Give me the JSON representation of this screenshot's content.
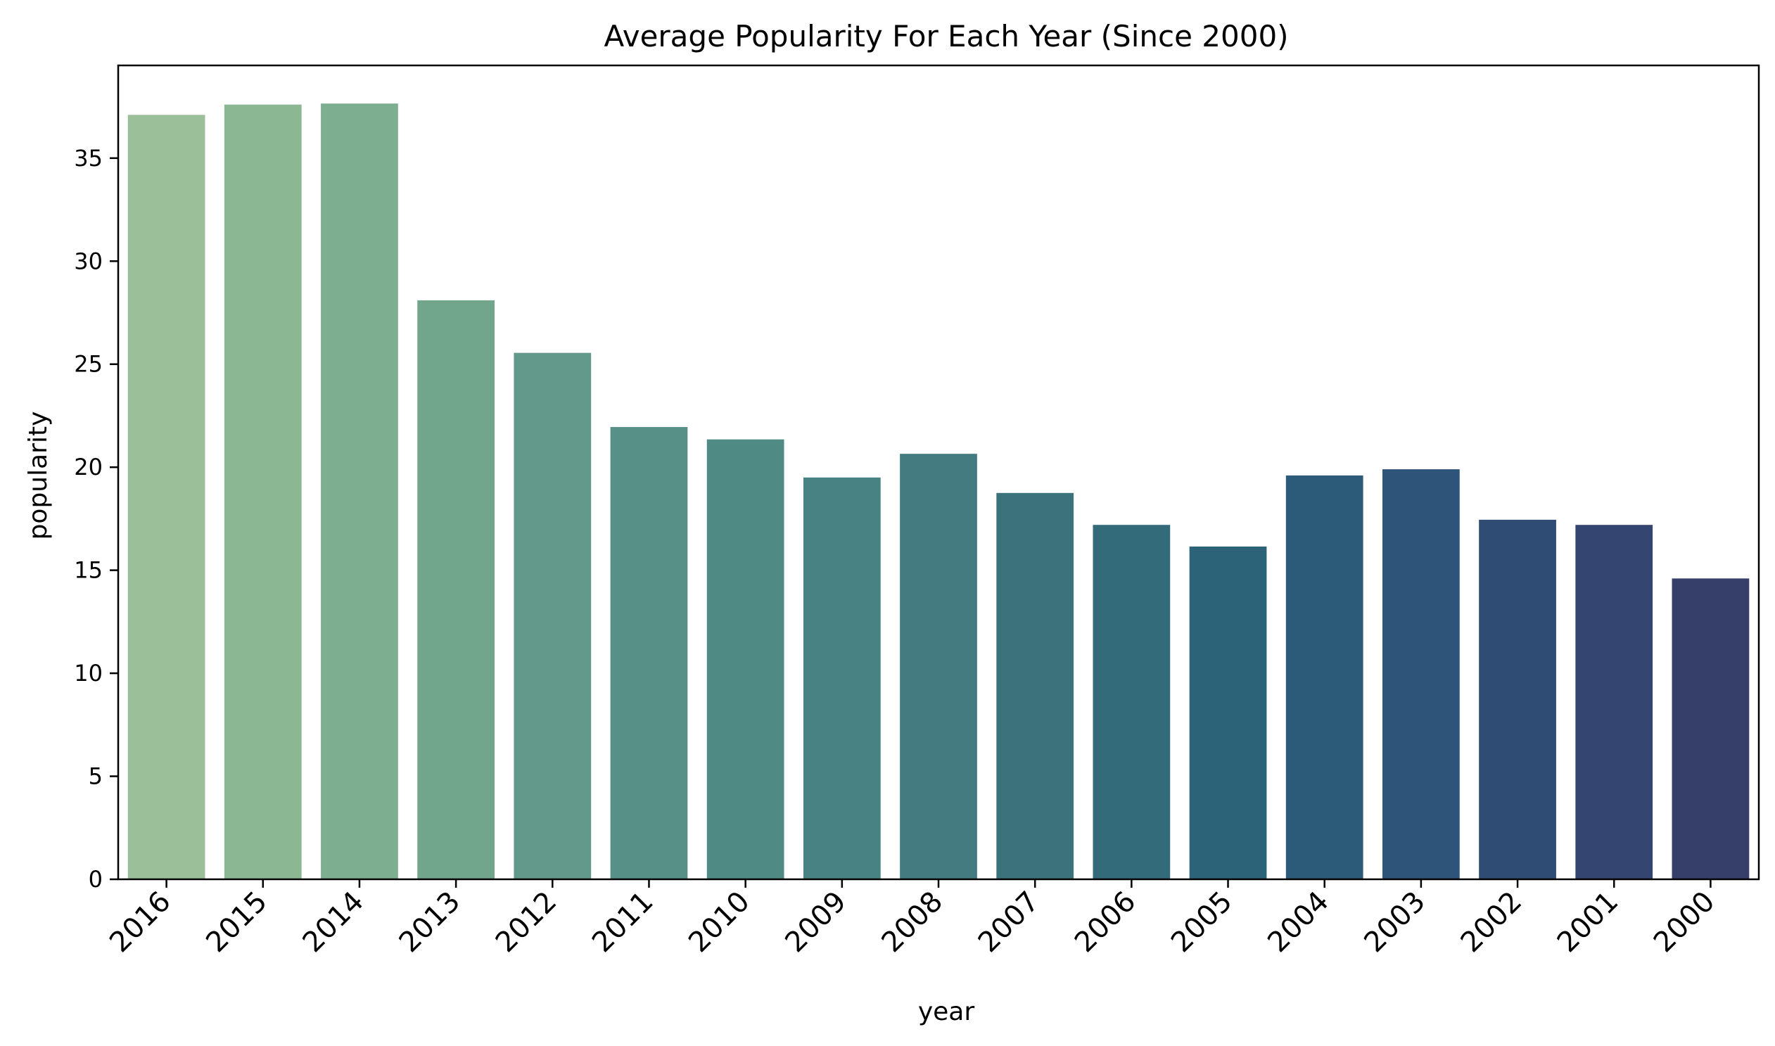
{
  "chart_data": {
    "type": "bar",
    "title": "Average Popularity For Each Year (Since 2000)",
    "xlabel": "year",
    "ylabel": "popularity",
    "categories": [
      "2016",
      "2015",
      "2014",
      "2013",
      "2012",
      "2011",
      "2010",
      "2009",
      "2008",
      "2007",
      "2006",
      "2005",
      "2004",
      "2003",
      "2002",
      "2001",
      "2000"
    ],
    "values": [
      37.1,
      37.6,
      37.65,
      28.1,
      25.55,
      21.95,
      21.35,
      19.5,
      20.65,
      18.75,
      17.2,
      16.15,
      19.6,
      19.9,
      17.45,
      17.2,
      14.6
    ],
    "bar_colors": [
      "#9bbf98",
      "#8cb793",
      "#7eae90",
      "#71a68d",
      "#63998a",
      "#579087",
      "#4f8a85",
      "#498283",
      "#437b80",
      "#3c727c",
      "#336b7b",
      "#2c6379",
      "#2c5b79",
      "#2e5479",
      "#2f4c75",
      "#344572",
      "#363f6a"
    ],
    "yticks": [
      0,
      5,
      10,
      15,
      20,
      25,
      30,
      35
    ],
    "ylim": [
      0,
      39.5
    ],
    "grid": false,
    "legend": false
  }
}
